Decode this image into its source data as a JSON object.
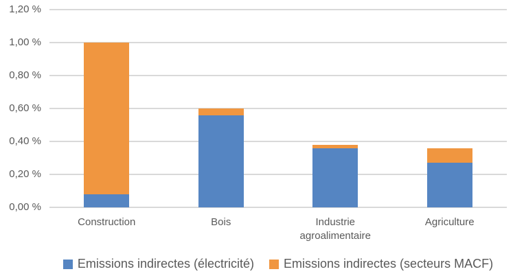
{
  "chart_data": {
    "type": "bar",
    "stacked": true,
    "title": "",
    "xlabel": "",
    "ylabel": "",
    "unit": "%",
    "grid": true,
    "legend_position": "bottom",
    "categories": [
      "Construction",
      "Bois",
      "Industrie agroalimentaire",
      "Agriculture"
    ],
    "category_display": [
      [
        "Construction"
      ],
      [
        "Bois"
      ],
      [
        "Industrie",
        "agroalimentaire"
      ],
      [
        "Agriculture"
      ]
    ],
    "series": [
      {
        "name": "Emissions indirectes (électricité)",
        "color": "#5585C2",
        "values": [
          0.08,
          0.56,
          0.36,
          0.27
        ]
      },
      {
        "name": "Emissions indirectes (secteurs MACF)",
        "color": "#F09640",
        "values": [
          0.92,
          0.04,
          0.02,
          0.09
        ]
      }
    ],
    "ylim": [
      0,
      1.2
    ],
    "yticks": [
      0,
      0.2,
      0.4,
      0.6,
      0.8,
      1.0,
      1.2
    ],
    "ytick_labels": [
      "0,00 %",
      "0,20 %",
      "0,40 %",
      "0,60 %",
      "0,80 %",
      "1,00 %",
      "1,20 %"
    ],
    "colors": {
      "text": "#595959",
      "gridline": "#d9d9d9",
      "background": "#ffffff"
    }
  }
}
